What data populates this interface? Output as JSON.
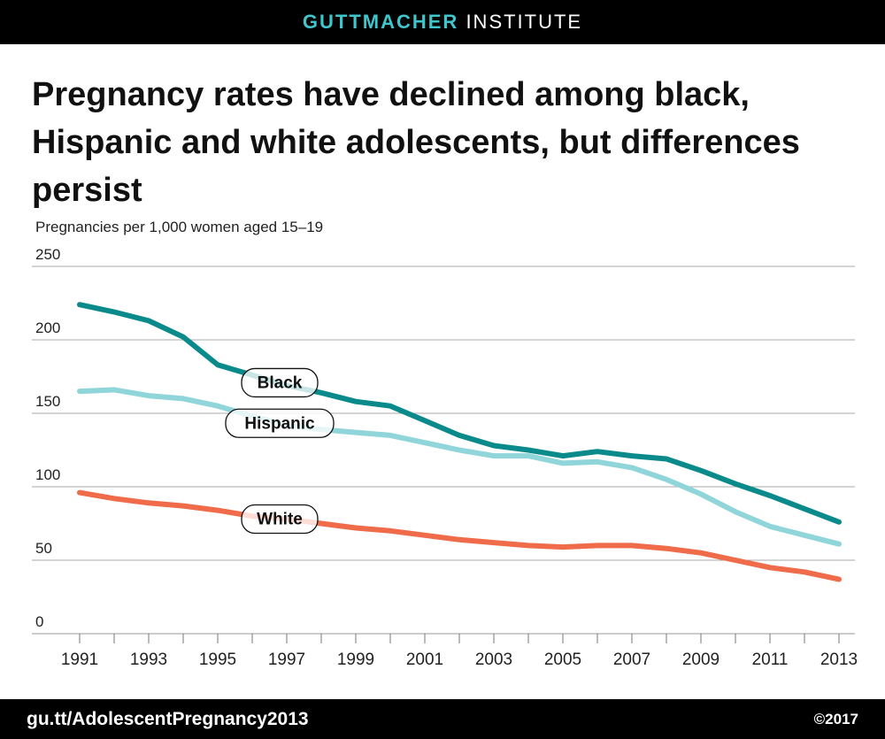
{
  "header": {
    "brand_bold": "GUTTMACHER",
    "brand_light": "INSTITUTE"
  },
  "title": "Pregnancy rates have declined among black, Hispanic and white adolescents, but differences persist",
  "footer": {
    "url": "gu.tt/AdolescentPregnancy2013",
    "copyright": "©2017"
  },
  "chart_data": {
    "type": "line",
    "ylabel": "Pregnancies per 1,000 women aged 15–19",
    "xlabel": "",
    "ylim": [
      0,
      250
    ],
    "yticks": [
      0,
      50,
      100,
      150,
      200,
      250
    ],
    "xticks": [
      1991,
      1993,
      1995,
      1997,
      1999,
      2001,
      2003,
      2005,
      2007,
      2009,
      2011,
      2013
    ],
    "grid": true,
    "x": [
      1991,
      1992,
      1993,
      1994,
      1995,
      1996,
      1997,
      1998,
      1999,
      2000,
      2001,
      2002,
      2003,
      2004,
      2005,
      2006,
      2007,
      2008,
      2009,
      2010,
      2011,
      2012,
      2013
    ],
    "series": [
      {
        "name": "Black",
        "color": "#0b8a8c",
        "label_year": 1997,
        "values": [
          224,
          219,
          213,
          202,
          183,
          176,
          169,
          164,
          158,
          155,
          145,
          135,
          128,
          125,
          121,
          124,
          121,
          119,
          111,
          102,
          94,
          85,
          76
        ]
      },
      {
        "name": "Hispanic",
        "color": "#8fd5d9",
        "label_year": 1997,
        "values": [
          165,
          166,
          162,
          160,
          155,
          148,
          142,
          139,
          137,
          135,
          130,
          125,
          121,
          121,
          116,
          117,
          113,
          105,
          95,
          83,
          73,
          67,
          61
        ]
      },
      {
        "name": "White",
        "color": "#ef6b49",
        "label_year": 1997,
        "values": [
          96,
          92,
          89,
          87,
          84,
          80,
          78,
          75,
          72,
          70,
          67,
          64,
          62,
          60,
          59,
          60,
          60,
          58,
          55,
          50,
          45,
          42,
          37
        ]
      }
    ]
  }
}
